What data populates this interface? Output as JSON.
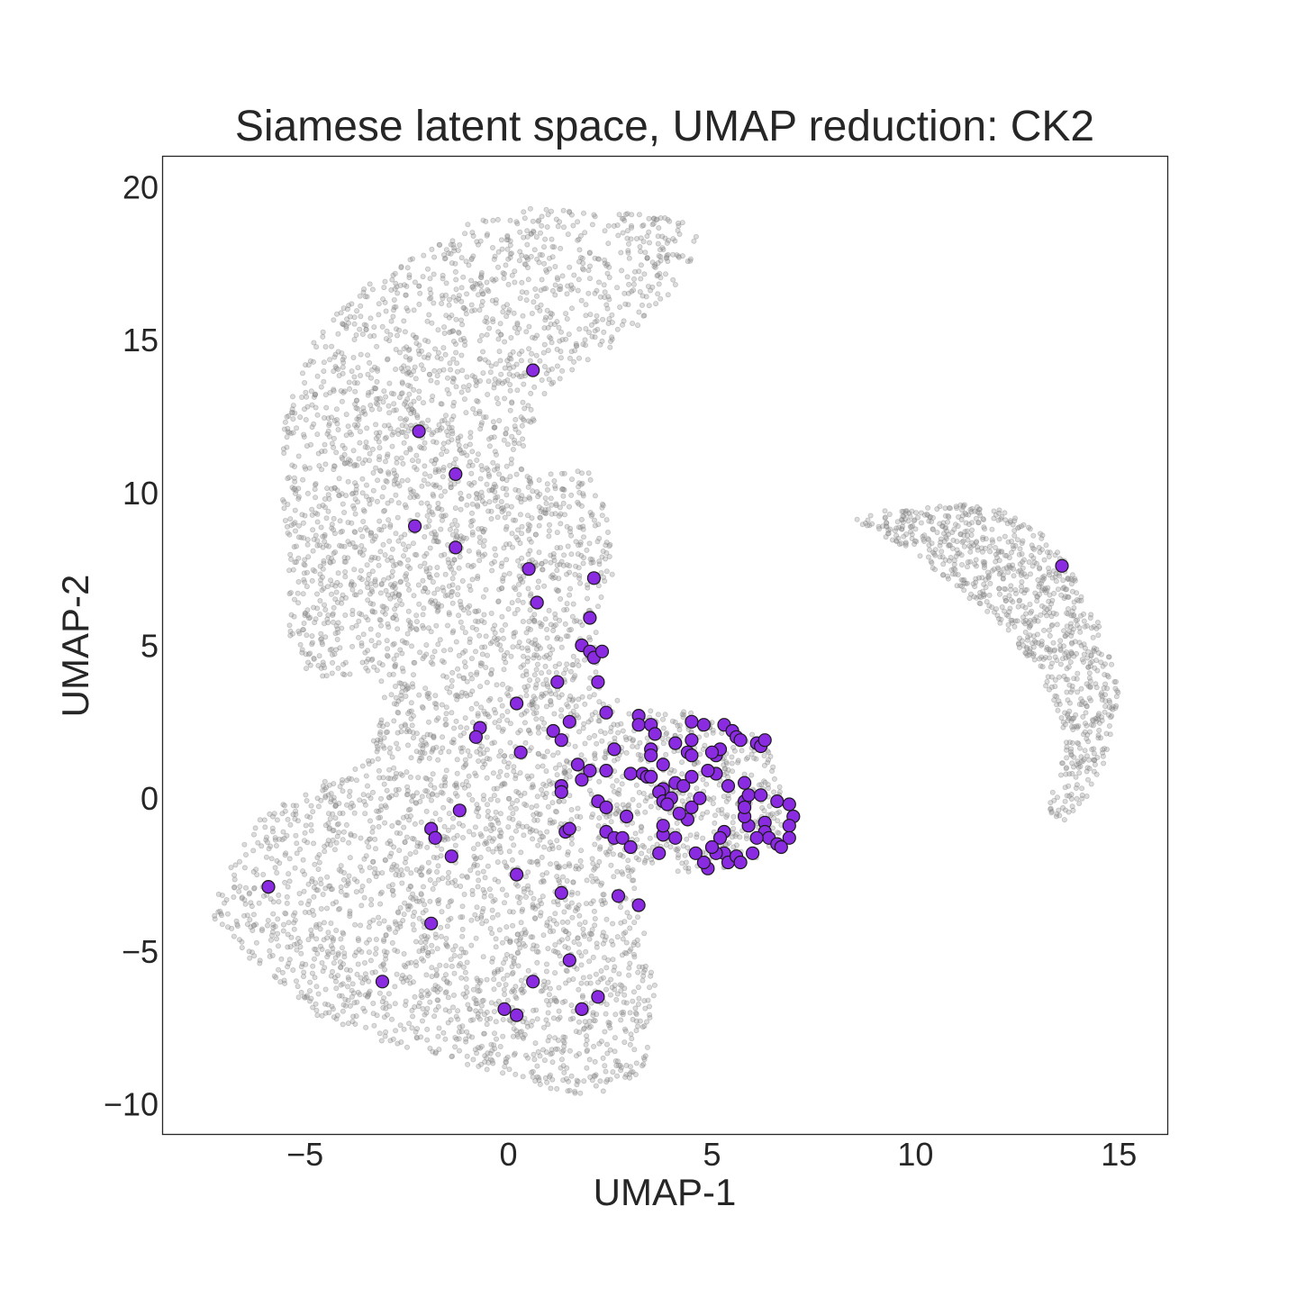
{
  "chart_data": {
    "type": "scatter",
    "title": "Siamese latent space, UMAP reduction: CK2",
    "xlabel": "UMAP-1",
    "ylabel": "UMAP-2",
    "xlim": [
      -8.5,
      16.2
    ],
    "ylim": [
      -11,
      21
    ],
    "xticks": [
      -5,
      0,
      5,
      10,
      15
    ],
    "yticks": [
      -10,
      -5,
      0,
      5,
      10,
      15,
      20
    ],
    "x_tick_labels": [
      "−5",
      "0",
      "5",
      "10",
      "15"
    ],
    "y_tick_labels": [
      "−10",
      "−5",
      "0",
      "5",
      "10",
      "15",
      "20"
    ],
    "grid": false,
    "colors": {
      "background_points": "#9a9a9a",
      "highlight_fill": "#8a2be2",
      "highlight_edge": "#1a1a1a",
      "frame": "#262626"
    },
    "background_regions": [
      {
        "shape": "polygon",
        "n": 5200,
        "vertices": [
          [
            -4.8,
            3.8
          ],
          [
            -5.4,
            5
          ],
          [
            -5.4,
            8
          ],
          [
            -5.6,
            10
          ],
          [
            -5.5,
            12.5
          ],
          [
            -4.7,
            15.2
          ],
          [
            -3.8,
            16.5
          ],
          [
            -2.2,
            17.8
          ],
          [
            -1,
            18.8
          ],
          [
            0.5,
            19.3
          ],
          [
            2,
            19.2
          ],
          [
            3.5,
            19.1
          ],
          [
            4.5,
            18.9
          ],
          [
            4.9,
            18.4
          ],
          [
            4,
            16.5
          ],
          [
            2.8,
            15
          ],
          [
            1,
            13.5
          ],
          [
            0.2,
            11
          ],
          [
            0.5,
            10.5
          ],
          [
            2,
            10.8
          ],
          [
            2.4,
            9.5
          ],
          [
            2.6,
            7.5
          ],
          [
            2.2,
            6
          ],
          [
            2.3,
            3.5
          ],
          [
            3,
            3
          ],
          [
            4.5,
            2.8
          ],
          [
            6.2,
            2
          ],
          [
            6.8,
            0.5
          ],
          [
            7,
            -0.7
          ],
          [
            6.5,
            -1.8
          ],
          [
            5.5,
            -2.3
          ],
          [
            4.2,
            -2.5
          ],
          [
            3.8,
            -2
          ],
          [
            3.2,
            -2.3
          ],
          [
            3.2,
            -4
          ],
          [
            3.6,
            -5.2
          ],
          [
            3.6,
            -7.3
          ],
          [
            3.3,
            -8.8
          ],
          [
            2.8,
            -9.5
          ],
          [
            1.8,
            -9.7
          ],
          [
            0.3,
            -9.3
          ],
          [
            -1.5,
            -8.5
          ],
          [
            -3,
            -8
          ],
          [
            -4.5,
            -7.3
          ],
          [
            -5.6,
            -6.2
          ],
          [
            -6.6,
            -5.2
          ],
          [
            -7.3,
            -4
          ],
          [
            -7,
            -2.2
          ],
          [
            -6,
            -0.5
          ],
          [
            -5,
            0.3
          ],
          [
            -3.5,
            1.2
          ],
          [
            -3,
            3
          ],
          [
            -3.3,
            4.2
          ]
        ]
      },
      {
        "shape": "polygon",
        "n": 900,
        "vertices": [
          [
            8.2,
            9.1
          ],
          [
            9.5,
            9.5
          ],
          [
            11,
            9.7
          ],
          [
            12.2,
            9.4
          ],
          [
            13.2,
            8.6
          ],
          [
            14,
            7.2
          ],
          [
            14.6,
            5.5
          ],
          [
            15,
            3.5
          ],
          [
            14.8,
            1.5
          ],
          [
            14.2,
            0
          ],
          [
            13.6,
            -0.8
          ],
          [
            13.2,
            -0.4
          ],
          [
            13.6,
            1
          ],
          [
            13.6,
            2.5
          ],
          [
            13,
            4.2
          ],
          [
            12,
            5.8
          ],
          [
            10.6,
            7.3
          ],
          [
            9.6,
            8.3
          ],
          [
            8.5,
            9
          ]
        ]
      }
    ],
    "series": [
      {
        "name": "CK2",
        "points": [
          [
            0.6,
            14
          ],
          [
            -2.2,
            12
          ],
          [
            -1.3,
            10.6
          ],
          [
            -2.3,
            8.9
          ],
          [
            -1.3,
            8.2
          ],
          [
            0.5,
            7.5
          ],
          [
            0.7,
            6.4
          ],
          [
            2.1,
            7.2
          ],
          [
            2,
            5.9
          ],
          [
            1.8,
            5
          ],
          [
            2,
            4.8
          ],
          [
            2.1,
            4.6
          ],
          [
            2.3,
            4.8
          ],
          [
            1.2,
            3.8
          ],
          [
            2.2,
            3.8
          ],
          [
            0.2,
            3.1
          ],
          [
            2.4,
            2.8
          ],
          [
            -0.7,
            2.3
          ],
          [
            -0.8,
            2
          ],
          [
            0.3,
            1.5
          ],
          [
            1.1,
            2.2
          ],
          [
            1.3,
            1.9
          ],
          [
            1.7,
            1.1
          ],
          [
            2.6,
            1.6
          ],
          [
            2,
            0.9
          ],
          [
            2.4,
            0.9
          ],
          [
            3,
            0.8
          ],
          [
            3.2,
            2.7
          ],
          [
            3.2,
            2.4
          ],
          [
            3.5,
            2.4
          ],
          [
            3.6,
            2.1
          ],
          [
            3.5,
            1.6
          ],
          [
            3.5,
            1.4
          ],
          [
            3.8,
            1.1
          ],
          [
            3.3,
            0.8
          ],
          [
            3.4,
            0.7
          ],
          [
            3.5,
            0.7
          ],
          [
            1.3,
            0.4
          ],
          [
            1.3,
            0.2
          ],
          [
            1.8,
            0.6
          ],
          [
            2.2,
            -0.1
          ],
          [
            2.4,
            -0.3
          ],
          [
            2.9,
            -0.6
          ],
          [
            3.8,
            0.3
          ],
          [
            3.7,
            0.2
          ],
          [
            3.8,
            -0.1
          ],
          [
            4,
            0
          ],
          [
            4.1,
            0.5
          ],
          [
            4.3,
            0.4
          ],
          [
            4.5,
            0.7
          ],
          [
            4.1,
            1.8
          ],
          [
            4.4,
            1.5
          ],
          [
            4.5,
            1.9
          ],
          [
            4.5,
            2.5
          ],
          [
            4.8,
            2.4
          ],
          [
            5.1,
            0.8
          ],
          [
            4.9,
            0.9
          ],
          [
            5.1,
            1.4
          ],
          [
            5.2,
            1.6
          ],
          [
            5,
            1.5
          ],
          [
            5.3,
            2.4
          ],
          [
            5.5,
            2.2
          ],
          [
            5.6,
            2
          ],
          [
            5.7,
            1.9
          ],
          [
            6.1,
            1.8
          ],
          [
            6.2,
            1.7
          ],
          [
            6.3,
            1.9
          ],
          [
            5.4,
            0.4
          ],
          [
            5.8,
            0.5
          ],
          [
            5.8,
            -0.1
          ],
          [
            5.9,
            0.1
          ],
          [
            6.2,
            0.1
          ],
          [
            6.6,
            -0.1
          ],
          [
            6.9,
            -0.2
          ],
          [
            7,
            -0.6
          ],
          [
            6.9,
            -0.9
          ],
          [
            6.9,
            -1.3
          ],
          [
            6.3,
            -0.8
          ],
          [
            6.3,
            -1.1
          ],
          [
            6.4,
            -1.3
          ],
          [
            6.6,
            -1.5
          ],
          [
            6.7,
            -1.6
          ],
          [
            6.1,
            -1.3
          ],
          [
            5.9,
            -0.9
          ],
          [
            5.8,
            -0.6
          ],
          [
            5.8,
            -0.3
          ],
          [
            5.3,
            -1.1
          ],
          [
            5.2,
            -1.3
          ],
          [
            5.3,
            -1.8
          ],
          [
            5.1,
            -1.8
          ],
          [
            5,
            -1.6
          ],
          [
            5.4,
            -2.1
          ],
          [
            5.6,
            -1.9
          ],
          [
            5.7,
            -2.1
          ],
          [
            6,
            -1.8
          ],
          [
            4.9,
            -2.3
          ],
          [
            4.8,
            -2.1
          ],
          [
            4.6,
            -1.8
          ],
          [
            4.4,
            -0.7
          ],
          [
            4.5,
            -0.3
          ],
          [
            4.7,
            0
          ],
          [
            4.2,
            -0.5
          ],
          [
            4.1,
            -1.3
          ],
          [
            3.8,
            -1.2
          ],
          [
            3.8,
            -0.9
          ],
          [
            3.7,
            -1.8
          ],
          [
            3.9,
            -0.2
          ],
          [
            4.5,
            1.4
          ],
          [
            2.4,
            -1.1
          ],
          [
            2.6,
            -1.3
          ],
          [
            2.8,
            -1.3
          ],
          [
            3,
            -1.6
          ],
          [
            1.4,
            -1.1
          ],
          [
            1.5,
            -1
          ],
          [
            1.5,
            2.5
          ],
          [
            -1.2,
            -0.4
          ],
          [
            -1.9,
            -1
          ],
          [
            -1.8,
            -1.3
          ],
          [
            -1.4,
            -1.9
          ],
          [
            0.2,
            -2.5
          ],
          [
            1.3,
            -3.1
          ],
          [
            2.7,
            -3.2
          ],
          [
            3.2,
            -3.5
          ],
          [
            -1.9,
            -4.1
          ],
          [
            -5.9,
            -2.9
          ],
          [
            -3.1,
            -6
          ],
          [
            0.6,
            -6
          ],
          [
            1.5,
            -5.3
          ],
          [
            2.2,
            -6.5
          ],
          [
            1.8,
            -6.9
          ],
          [
            -0.1,
            -6.9
          ],
          [
            0.2,
            -7.1
          ],
          [
            13.6,
            7.6
          ]
        ]
      }
    ]
  }
}
